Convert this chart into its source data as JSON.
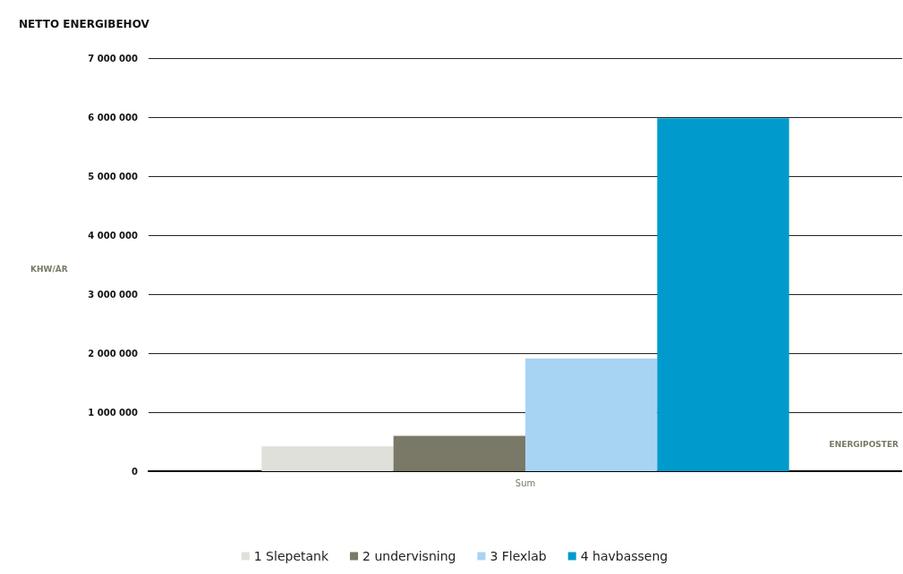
{
  "chart_data": {
    "type": "bar",
    "title": "NETTO ENERGIBEHOV",
    "ylabel": "KHW/ÅR",
    "xlabel": "ENERGIPOSTER",
    "categories": [
      "Sum"
    ],
    "series": [
      {
        "name": "1 Slepetank",
        "color": "#e0e0da",
        "values": [
          420000
        ]
      },
      {
        "name": "2 undervisning",
        "color": "#7a7866",
        "values": [
          600000
        ]
      },
      {
        "name": "3 Flexlab",
        "color": "#a8d4f4",
        "values": [
          1910000
        ]
      },
      {
        "name": "4 havbasseng",
        "color": "#009bcc",
        "values": [
          5980000
        ]
      }
    ],
    "ylim": [
      0,
      7000000
    ],
    "yticks": [
      0,
      1000000,
      2000000,
      3000000,
      4000000,
      5000000,
      6000000,
      7000000
    ],
    "grid": "y",
    "legend": "bottom"
  }
}
